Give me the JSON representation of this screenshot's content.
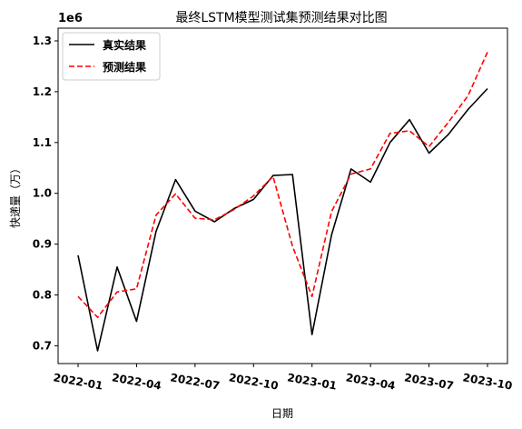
{
  "chart_data": {
    "type": "line",
    "title": "最终LSTM模型测试集预测结果对比图",
    "xlabel": "日期",
    "ylabel": "快递量（万）",
    "y_offset_text": "1e6",
    "ylim": [
      0.665,
      1.325
    ],
    "y_ticks": [
      0.7,
      0.8,
      0.9,
      1.0,
      1.1,
      1.2,
      1.3
    ],
    "y_tick_labels": [
      "0.7",
      "0.8",
      "0.9",
      "1.0",
      "1.1",
      "1.2",
      "1.3"
    ],
    "x": [
      "2022-01",
      "2022-02",
      "2022-03",
      "2022-04",
      "2022-05",
      "2022-06",
      "2022-07",
      "2022-08",
      "2022-09",
      "2022-10",
      "2022-11",
      "2022-12",
      "2023-01",
      "2023-02",
      "2023-03",
      "2023-04",
      "2023-05",
      "2023-06",
      "2023-07",
      "2023-08",
      "2023-09",
      "2023-10"
    ],
    "x_tick_labels": [
      "2022-01",
      "2022-04",
      "2022-07",
      "2022-10",
      "2023-01",
      "2023-04",
      "2023-07",
      "2023-10"
    ],
    "series": [
      {
        "name": "真实结果",
        "color": "#000000",
        "style": "solid",
        "values": [
          0.878,
          0.69,
          0.855,
          0.748,
          0.925,
          1.027,
          0.965,
          0.944,
          0.97,
          0.988,
          1.035,
          1.037,
          0.722,
          0.918,
          1.048,
          1.022,
          1.1,
          1.145,
          1.079,
          1.116,
          1.165,
          1.206
        ]
      },
      {
        "name": "预测结果",
        "color": "#ff0000",
        "style": "dashed",
        "values": [
          0.797,
          0.756,
          0.806,
          0.812,
          0.957,
          0.999,
          0.951,
          0.948,
          0.968,
          0.995,
          1.033,
          0.896,
          0.797,
          0.964,
          1.038,
          1.048,
          1.118,
          1.123,
          1.092,
          1.14,
          1.192,
          1.278
        ]
      }
    ],
    "legend_position": "upper-left",
    "grid": false
  }
}
